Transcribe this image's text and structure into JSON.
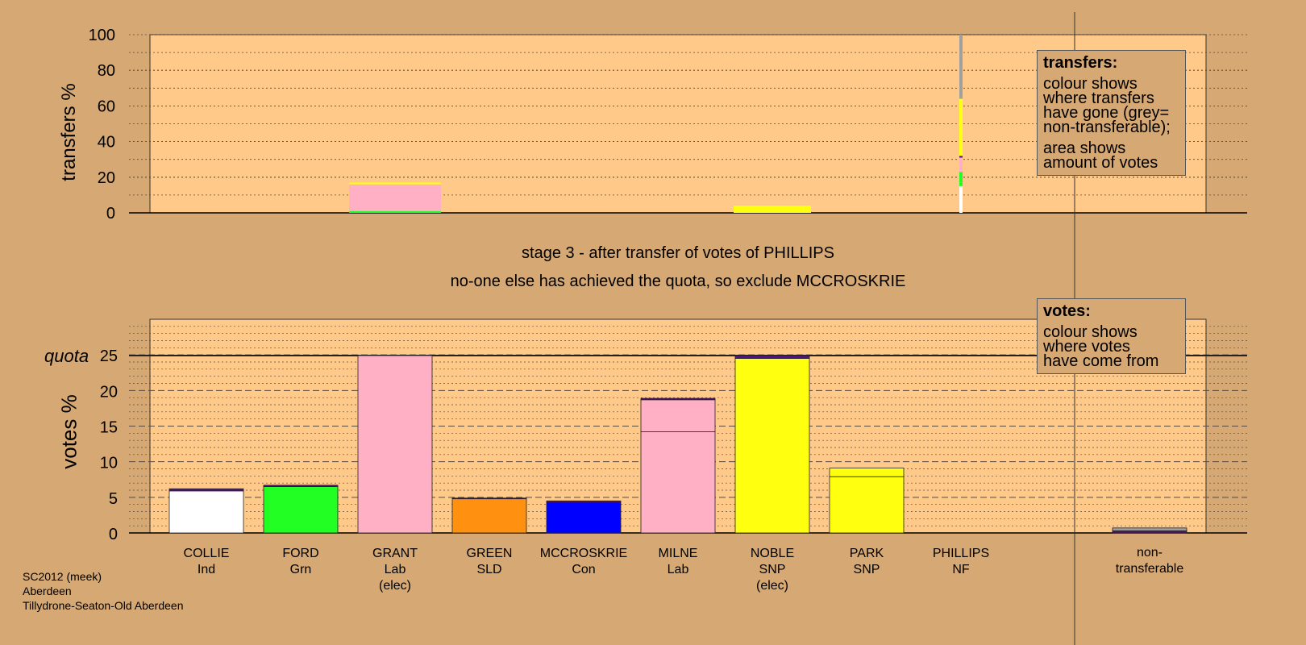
{
  "captions": {
    "stage": "stage 3 - after transfer of votes of PHILLIPS",
    "action": "no-one else has achieved the quota, so exclude MCCROSKRIE"
  },
  "legends": {
    "transfers": {
      "title": "transfers:",
      "lines": [
        "colour shows",
        "where transfers",
        "have gone (grey=",
        "non-transferable);"
      ],
      "lines2": [
        "area shows",
        "amount of votes"
      ]
    },
    "votes": {
      "title": "votes:",
      "lines": [
        "colour shows",
        "where votes",
        "have come from"
      ]
    }
  },
  "footer": {
    "line1": "SC2012 (meek)",
    "line2": "Aberdeen",
    "line3": "Tillydrone-Seaton-Old Aberdeen"
  },
  "colors": {
    "background": "#D5A874",
    "plot_area": "#FFC98A",
    "Ind": "#FFFFFF",
    "Grn": "#22FF22",
    "Lab": "#FFB0C4",
    "SLD": "#FF9010",
    "Con": "#0000FF",
    "SNP": "#FFFF10",
    "NF": "#5A1080",
    "nontransferable": "#A0A0A0"
  },
  "chart_data": [
    {
      "type": "bar",
      "ylabel": "transfers %",
      "ylim": [
        0,
        100
      ],
      "yticks": [
        0,
        20,
        40,
        60,
        80,
        100
      ],
      "categories": [
        "COLLIE",
        "FORD",
        "GRANT",
        "GREEN",
        "MCCROSKRIE",
        "MILNE",
        "NOBLE",
        "PARK",
        "PHILLIPS"
      ],
      "transfers_received": [
        {
          "candidate": "GRANT",
          "segments": [
            {
              "party": "Grn",
              "value": 1
            },
            {
              "party": "Lab",
              "value": 15
            },
            {
              "party": "SNP",
              "value": 1
            }
          ]
        },
        {
          "candidate": "NOBLE",
          "segments": [
            {
              "party": "SNP",
              "value": 4
            }
          ]
        }
      ],
      "transfer_source": {
        "candidate": "PHILLIPS",
        "segments": [
          {
            "party": "Ind",
            "value": 15
          },
          {
            "party": "Grn",
            "value": 8
          },
          {
            "party": "Lab",
            "value": 8
          },
          {
            "party": "NF",
            "value": 1
          },
          {
            "party": "SNP",
            "value": 10
          },
          {
            "party": "SNP",
            "value": 22
          },
          {
            "party": "nontransferable",
            "value": 36
          }
        ]
      }
    },
    {
      "type": "bar",
      "ylabel": "votes %",
      "ylim": [
        0,
        30
      ],
      "yticks": [
        0,
        5,
        10,
        15,
        20,
        25
      ],
      "quota": 24.9,
      "quota_label": "quota",
      "candidates": [
        {
          "name": "COLLIE",
          "party": "Ind",
          "elected": false,
          "segments": [
            {
              "party": "Ind",
              "value": 5.9
            },
            {
              "party": "NF",
              "value": 0.3
            }
          ]
        },
        {
          "name": "FORD",
          "party": "Grn",
          "elected": false,
          "segments": [
            {
              "party": "Grn",
              "value": 6.5
            },
            {
              "party": "NF",
              "value": 0.2
            }
          ]
        },
        {
          "name": "GRANT",
          "party": "Lab",
          "elected": true,
          "segments": [
            {
              "party": "Lab",
              "value": 24.9
            }
          ]
        },
        {
          "name": "GREEN",
          "party": "SLD",
          "elected": false,
          "segments": [
            {
              "party": "SLD",
              "value": 4.8
            },
            {
              "party": "NF",
              "value": 0.1
            }
          ]
        },
        {
          "name": "MCCROSKRIE",
          "party": "Con",
          "elected": false,
          "segments": [
            {
              "party": "Con",
              "value": 4.3
            },
            {
              "party": "NF",
              "value": 0.2
            }
          ]
        },
        {
          "name": "MILNE",
          "party": "Lab",
          "elected": false,
          "segments": [
            {
              "party": "Lab",
              "value": 14.2
            },
            {
              "party": "Lab",
              "value": 4.5
            },
            {
              "party": "NF",
              "value": 0.2
            }
          ]
        },
        {
          "name": "NOBLE",
          "party": "SNP",
          "elected": true,
          "segments": [
            {
              "party": "SNP",
              "value": 24.5
            },
            {
              "party": "NF",
              "value": 0.4
            }
          ]
        },
        {
          "name": "PARK",
          "party": "SNP",
          "elected": false,
          "segments": [
            {
              "party": "SNP",
              "value": 7.9
            },
            {
              "party": "SNP",
              "value": 1.2
            }
          ]
        },
        {
          "name": "PHILLIPS",
          "party": "NF",
          "elected": false,
          "segments": []
        },
        {
          "name": "non-transferable",
          "party": "",
          "elected": false,
          "segments": [
            {
              "party": "NF",
              "value": 0.3
            },
            {
              "party": "nontransferable",
              "value": 0.4
            }
          ]
        }
      ],
      "labels": [
        [
          "COLLIE",
          "Ind"
        ],
        [
          "FORD",
          "Grn"
        ],
        [
          "GRANT",
          "Lab",
          "(elec)"
        ],
        [
          "GREEN",
          "SLD"
        ],
        [
          "MCCROSKRIE",
          "Con"
        ],
        [
          "MILNE",
          "Lab"
        ],
        [
          "NOBLE",
          "SNP",
          "(elec)"
        ],
        [
          "PARK",
          "SNP"
        ],
        [
          "PHILLIPS",
          "NF"
        ],
        [
          "non-",
          "transferable"
        ]
      ]
    }
  ]
}
